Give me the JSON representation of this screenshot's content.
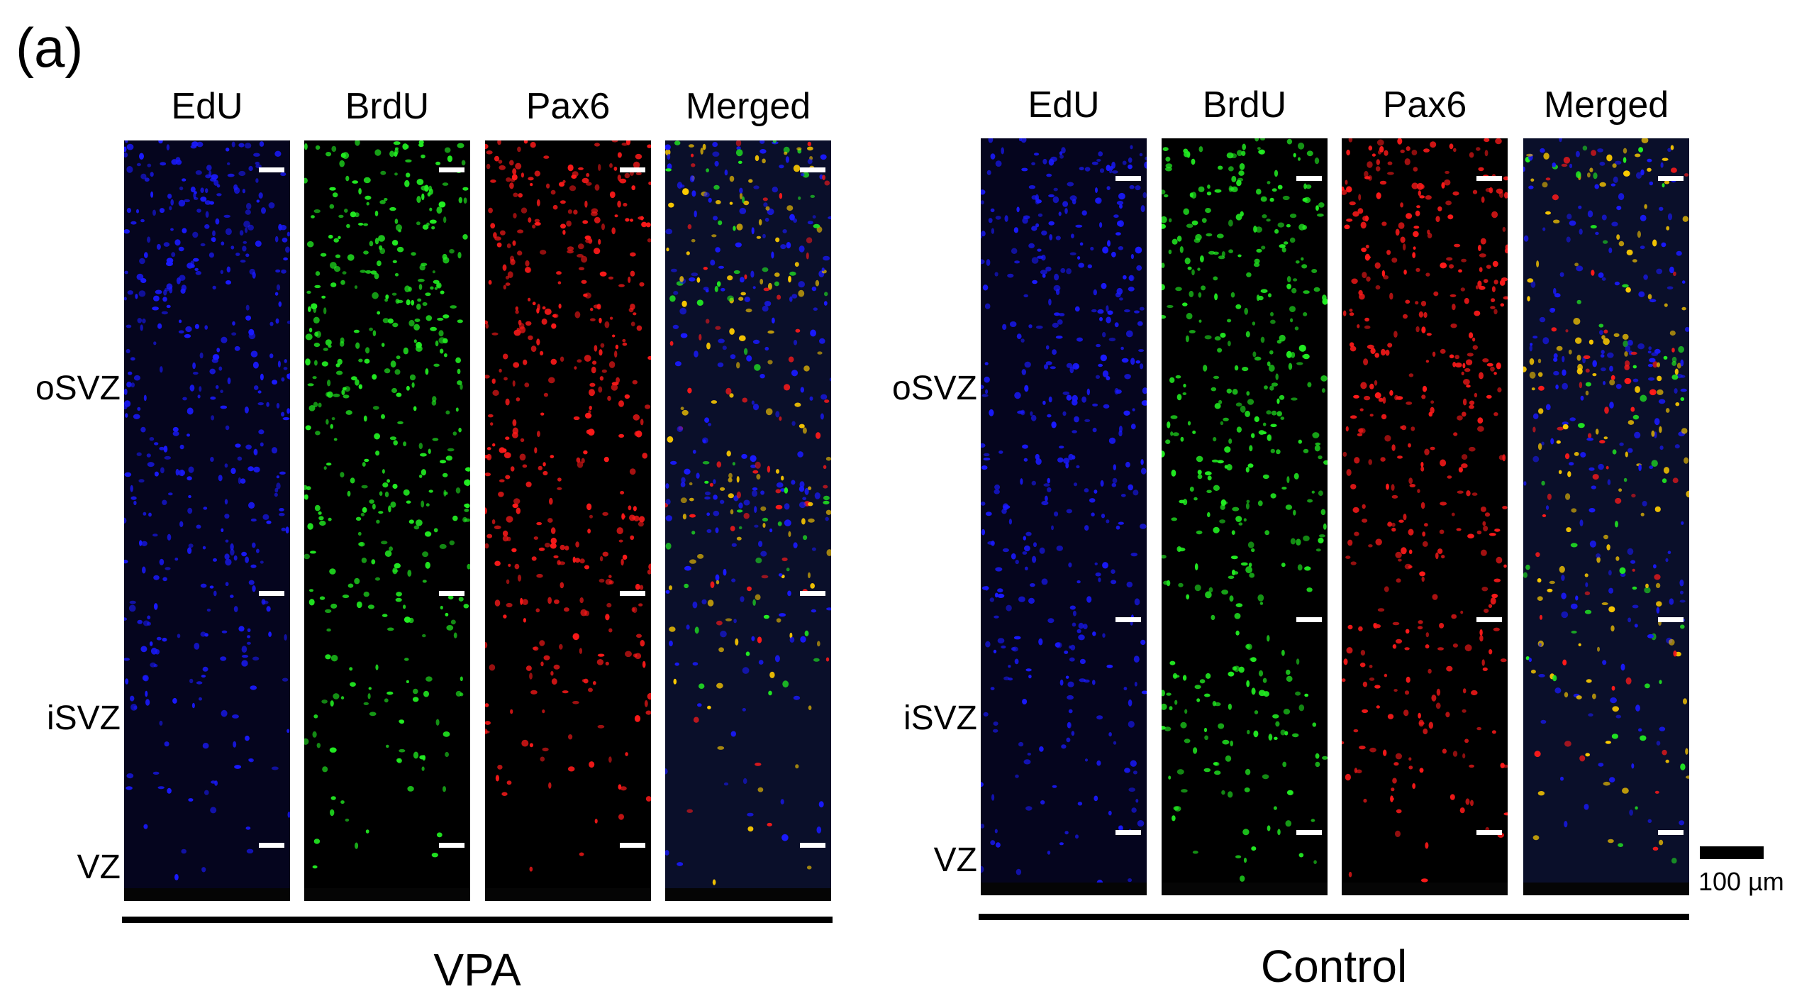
{
  "figure": {
    "panel_label": "(a)",
    "groups": [
      {
        "name": "VPA",
        "columns": [
          "EdU",
          "BrdU",
          "Pax6",
          "Merged"
        ],
        "zones": [
          "oSVZ",
          "iSVZ",
          "VZ"
        ]
      },
      {
        "name": "Control",
        "columns": [
          "EdU",
          "BrdU",
          "Pax6",
          "Merged"
        ],
        "zones": [
          "oSVZ",
          "iSVZ",
          "VZ"
        ]
      }
    ],
    "scale_bar": "100 µm",
    "colors": {
      "edu": "#1a1aff",
      "brdu": "#22ee22",
      "pax6": "#ff1a1a",
      "merged_overlap": "#ffcc00"
    }
  }
}
